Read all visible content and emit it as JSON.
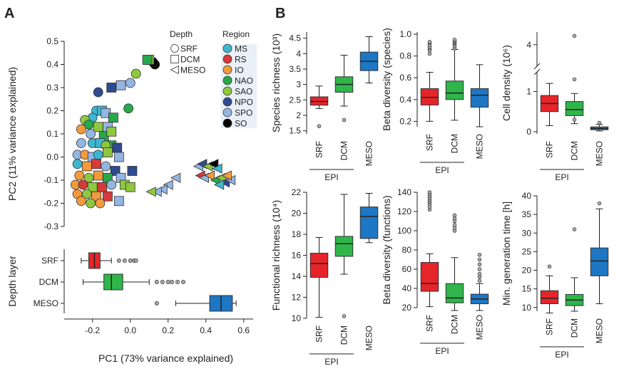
{
  "panels": {
    "a": "A",
    "b": "B"
  },
  "colors": {
    "MS": "#3fb6cf",
    "RS": "#d63a3a",
    "IO": "#f39a3c",
    "NAO": "#27a84a",
    "SAO": "#8fc73e",
    "NPO": "#2f4a8f",
    "SPO": "#93b6e2",
    "SO": "#000000",
    "SRF": "#e5252a",
    "DCM": "#2fb54a",
    "MESO": "#1d77c4"
  },
  "legend": {
    "depth_title": "Depth",
    "depth_items": [
      "SRF",
      "DCM",
      "MESO"
    ],
    "region_title": "Region",
    "region_items": [
      "MS",
      "RS",
      "IO",
      "NAO",
      "SAO",
      "NPO",
      "SPO",
      "SO"
    ]
  },
  "chart_data": [
    {
      "id": "pca",
      "type": "scatter",
      "xlabel": "PC1 (73% variance explained)",
      "ylabel": "PC2 (11% variance explained)",
      "xlim": [
        -0.35,
        0.65
      ],
      "ylim": [
        -0.3,
        0.5
      ],
      "xticks": [
        "-0.2",
        "0.0",
        "0.2",
        "0.4",
        "0.6"
      ],
      "yticks": [
        "0.5",
        "0.4",
        "0.3",
        "0.2",
        "0.1",
        "0.0",
        "-0.1",
        "-0.2",
        "-0.3"
      ],
      "points": [
        {
          "x": 0.13,
          "y": 0.4,
          "depth": "SRF",
          "region": "SO"
        },
        {
          "x": 0.12,
          "y": 0.41,
          "depth": "SRF",
          "region": "SO"
        },
        {
          "x": 0.1,
          "y": 0.42,
          "depth": "DCM",
          "region": "SAO"
        },
        {
          "x": 0.09,
          "y": 0.42,
          "depth": "DCM",
          "region": "NAO"
        },
        {
          "x": 0.03,
          "y": 0.36,
          "depth": "SRF",
          "region": "SAO"
        },
        {
          "x": 0.0,
          "y": 0.32,
          "depth": "SRF",
          "region": "SPO"
        },
        {
          "x": -0.05,
          "y": 0.31,
          "depth": "DCM",
          "region": "SPO"
        },
        {
          "x": -0.1,
          "y": 0.3,
          "depth": "DCM",
          "region": "NPO"
        },
        {
          "x": -0.17,
          "y": 0.28,
          "depth": "SRF",
          "region": "NPO"
        },
        {
          "x": -0.01,
          "y": 0.21,
          "depth": "SRF",
          "region": "NAO"
        },
        {
          "x": -0.18,
          "y": 0.2,
          "depth": "SRF",
          "region": "MS"
        },
        {
          "x": -0.15,
          "y": 0.2,
          "depth": "DCM",
          "region": "MS"
        },
        {
          "x": -0.13,
          "y": 0.19,
          "depth": "DCM",
          "region": "SPO"
        },
        {
          "x": -0.2,
          "y": 0.17,
          "depth": "SRF",
          "region": "MS"
        },
        {
          "x": -0.09,
          "y": 0.17,
          "depth": "DCM",
          "region": "NAO"
        },
        {
          "x": -0.24,
          "y": 0.16,
          "depth": "SRF",
          "region": "SAO"
        },
        {
          "x": -0.22,
          "y": 0.14,
          "depth": "SRF",
          "region": "NAO"
        },
        {
          "x": -0.17,
          "y": 0.13,
          "depth": "DCM",
          "region": "SAO"
        },
        {
          "x": -0.12,
          "y": 0.13,
          "depth": "DCM",
          "region": "SPO"
        },
        {
          "x": -0.26,
          "y": 0.12,
          "depth": "SRF",
          "region": "IO"
        },
        {
          "x": -0.21,
          "y": 0.1,
          "depth": "SRF",
          "region": "SPO"
        },
        {
          "x": -0.14,
          "y": 0.09,
          "depth": "DCM",
          "region": "NAO"
        },
        {
          "x": -0.1,
          "y": 0.11,
          "depth": "DCM",
          "region": "SAO"
        },
        {
          "x": -0.26,
          "y": 0.06,
          "depth": "SRF",
          "region": "SPO"
        },
        {
          "x": -0.2,
          "y": 0.06,
          "depth": "SRF",
          "region": "MS"
        },
        {
          "x": -0.16,
          "y": 0.06,
          "depth": "DCM",
          "region": "MS"
        },
        {
          "x": -0.1,
          "y": 0.05,
          "depth": "DCM",
          "region": "NAO"
        },
        {
          "x": -0.07,
          "y": 0.04,
          "depth": "DCM",
          "region": "NPO"
        },
        {
          "x": -0.13,
          "y": 0.05,
          "depth": "SRF",
          "region": "SAO"
        },
        {
          "x": -0.28,
          "y": 0.01,
          "depth": "SRF",
          "region": "SPO"
        },
        {
          "x": -0.24,
          "y": 0.01,
          "depth": "SRF",
          "region": "IO"
        },
        {
          "x": -0.2,
          "y": 0.0,
          "depth": "DCM",
          "region": "SPO"
        },
        {
          "x": -0.17,
          "y": 0.01,
          "depth": "SRF",
          "region": "MS"
        },
        {
          "x": -0.12,
          "y": 0.02,
          "depth": "DCM",
          "region": "SAO"
        },
        {
          "x": -0.06,
          "y": 0.0,
          "depth": "DCM",
          "region": "SPO"
        },
        {
          "x": -0.28,
          "y": -0.03,
          "depth": "SRF",
          "region": "MS"
        },
        {
          "x": -0.23,
          "y": -0.04,
          "depth": "DCM",
          "region": "IO"
        },
        {
          "x": -0.18,
          "y": -0.03,
          "depth": "DCM",
          "region": "RS"
        },
        {
          "x": -0.13,
          "y": -0.04,
          "depth": "SRF",
          "region": "SPO"
        },
        {
          "x": -0.08,
          "y": -0.06,
          "depth": "DCM",
          "region": "NPO"
        },
        {
          "x": 0.01,
          "y": -0.06,
          "depth": "DCM",
          "region": "NPO"
        },
        {
          "x": -0.27,
          "y": -0.08,
          "depth": "SRF",
          "region": "IO"
        },
        {
          "x": -0.22,
          "y": -0.09,
          "depth": "SRF",
          "region": "SAO"
        },
        {
          "x": -0.17,
          "y": -0.08,
          "depth": "DCM",
          "region": "IO"
        },
        {
          "x": -0.12,
          "y": -0.09,
          "depth": "DCM",
          "region": "NAO"
        },
        {
          "x": -0.05,
          "y": -0.09,
          "depth": "DCM",
          "region": "SPO"
        },
        {
          "x": -0.29,
          "y": -0.12,
          "depth": "SRF",
          "region": "IO"
        },
        {
          "x": -0.25,
          "y": -0.12,
          "depth": "SRF",
          "region": "RS"
        },
        {
          "x": -0.2,
          "y": -0.13,
          "depth": "DCM",
          "region": "SAO"
        },
        {
          "x": -0.15,
          "y": -0.13,
          "depth": "DCM",
          "region": "RS"
        },
        {
          "x": -0.1,
          "y": -0.12,
          "depth": "SRF",
          "region": "SPO"
        },
        {
          "x": -0.03,
          "y": -0.12,
          "depth": "DCM",
          "region": "SAO"
        },
        {
          "x": 0.0,
          "y": -0.13,
          "depth": "DCM",
          "region": "SAO"
        },
        {
          "x": -0.28,
          "y": -0.16,
          "depth": "SRF",
          "region": "IO"
        },
        {
          "x": -0.23,
          "y": -0.16,
          "depth": "SRF",
          "region": "SAO"
        },
        {
          "x": -0.18,
          "y": -0.17,
          "depth": "DCM",
          "region": "IO"
        },
        {
          "x": -0.12,
          "y": -0.17,
          "depth": "DCM",
          "region": "RS"
        },
        {
          "x": -0.06,
          "y": -0.19,
          "depth": "DCM",
          "region": "SPO"
        },
        {
          "x": -0.26,
          "y": -0.19,
          "depth": "SRF",
          "region": "IO"
        },
        {
          "x": -0.21,
          "y": -0.2,
          "depth": "SRF",
          "region": "SAO"
        },
        {
          "x": -0.16,
          "y": -0.2,
          "depth": "SRF",
          "region": "IO"
        },
        {
          "x": 0.36,
          "y": -0.04,
          "depth": "MESO",
          "region": "SPO"
        },
        {
          "x": 0.38,
          "y": -0.03,
          "depth": "MESO",
          "region": "NPO"
        },
        {
          "x": 0.41,
          "y": -0.04,
          "depth": "MESO",
          "region": "SAO"
        },
        {
          "x": 0.44,
          "y": -0.03,
          "depth": "MESO",
          "region": "SO"
        },
        {
          "x": 0.46,
          "y": -0.05,
          "depth": "MESO",
          "region": "MS"
        },
        {
          "x": 0.37,
          "y": -0.08,
          "depth": "MESO",
          "region": "RS"
        },
        {
          "x": 0.39,
          "y": -0.09,
          "depth": "MESO",
          "region": "SPO"
        },
        {
          "x": 0.42,
          "y": -0.08,
          "depth": "MESO",
          "region": "IO"
        },
        {
          "x": 0.45,
          "y": -0.1,
          "depth": "MESO",
          "region": "NAO"
        },
        {
          "x": 0.48,
          "y": -0.09,
          "depth": "MESO",
          "region": "SAO"
        },
        {
          "x": 0.5,
          "y": -0.11,
          "depth": "MESO",
          "region": "NPO"
        },
        {
          "x": 0.53,
          "y": -0.1,
          "depth": "MESO",
          "region": "SPO"
        },
        {
          "x": 0.47,
          "y": -0.12,
          "depth": "MESO",
          "region": "MS"
        },
        {
          "x": 0.51,
          "y": -0.08,
          "depth": "MESO",
          "region": "IO"
        },
        {
          "x": 0.24,
          "y": -0.09,
          "depth": "MESO",
          "region": "SPO"
        },
        {
          "x": 0.2,
          "y": -0.12,
          "depth": "MESO",
          "region": "SPO"
        },
        {
          "x": 0.17,
          "y": -0.14,
          "depth": "MESO",
          "region": "SPO"
        },
        {
          "x": 0.14,
          "y": -0.15,
          "depth": "MESO",
          "region": "SPO"
        },
        {
          "x": 0.11,
          "y": -0.15,
          "depth": "MESO",
          "region": "SAO"
        }
      ]
    },
    {
      "id": "pc1-depth",
      "type": "boxplot",
      "ylabel": "Depth layer",
      "categories": [
        "SRF",
        "DCM",
        "MESO"
      ],
      "boxes": [
        {
          "name": "SRF",
          "whisker_low": -0.26,
          "q1": -0.22,
          "median": -0.19,
          "q3": -0.16,
          "whisker_high": -0.1,
          "outliers": [
            -0.06,
            -0.03,
            0.0,
            0.02,
            0.03
          ]
        },
        {
          "name": "DCM",
          "whisker_low": -0.25,
          "q1": -0.14,
          "median": -0.1,
          "q3": -0.04,
          "whisker_high": 0.1,
          "outliers": [
            0.14,
            0.17,
            0.2,
            0.22,
            0.25,
            0.28
          ]
        },
        {
          "name": "MESO",
          "whisker_low": 0.24,
          "q1": 0.42,
          "median": 0.48,
          "q3": 0.54,
          "whisker_high": 0.56,
          "outliers": [
            0.14
          ]
        }
      ]
    },
    {
      "id": "species-richness",
      "type": "boxplot",
      "ylabel": "Species richness (10³)",
      "ylim": [
        1.4,
        4.7
      ],
      "yticks": [
        "1.5",
        "2",
        "2.5",
        "3",
        "3.5",
        "4",
        "4.5"
      ],
      "categories": [
        "SRF",
        "DCM",
        "MESO"
      ],
      "group_label": "EPI",
      "boxes": [
        {
          "name": "SRF",
          "whisker_low": 2.22,
          "q1": 2.33,
          "median": 2.45,
          "q3": 2.6,
          "whisker_high": 2.95,
          "outliers": [
            1.65
          ]
        },
        {
          "name": "DCM",
          "whisker_low": 2.3,
          "q1": 2.75,
          "median": 3.0,
          "q3": 3.25,
          "whisker_high": 3.95,
          "outliers": [
            1.85
          ]
        },
        {
          "name": "MESO",
          "whisker_low": 3.05,
          "q1": 3.45,
          "median": 3.75,
          "q3": 4.05,
          "whisker_high": 4.55,
          "outliers": []
        }
      ]
    },
    {
      "id": "beta-species",
      "type": "boxplot",
      "ylabel": "Beta diversity (species)",
      "ylim": [
        0.15,
        1.02
      ],
      "yticks": [
        "0.2",
        "0.4",
        "0.6",
        "0.8",
        "1.0"
      ],
      "categories": [
        "SRF",
        "DCM",
        "MESO"
      ],
      "group_label": "EPI",
      "boxes": [
        {
          "name": "SRF",
          "whisker_low": 0.2,
          "q1": 0.35,
          "median": 0.42,
          "q3": 0.5,
          "whisker_high": 0.65,
          "outliers": [
            0.82,
            0.85,
            0.87,
            0.88,
            0.9,
            0.92,
            0.93
          ]
        },
        {
          "name": "DCM",
          "whisker_low": 0.21,
          "q1": 0.4,
          "median": 0.46,
          "q3": 0.57,
          "whisker_high": 0.86,
          "outliers": [
            0.87,
            0.89,
            0.91,
            0.92,
            0.93,
            0.94,
            0.95
          ]
        },
        {
          "name": "MESO",
          "whisker_low": 0.15,
          "q1": 0.33,
          "median": 0.44,
          "q3": 0.5,
          "whisker_high": 0.72,
          "outliers": []
        }
      ]
    },
    {
      "id": "cell-density",
      "type": "boxplot",
      "ylabel": "Cell density (10⁶)",
      "axis_break": true,
      "yticks": [
        "0",
        "1",
        "4"
      ],
      "categories": [
        "SRF",
        "DCM",
        "MESO"
      ],
      "group_label": "EPI",
      "boxes": [
        {
          "name": "SRF",
          "whisker_low": 0.15,
          "q1": 0.5,
          "median": 0.7,
          "q3": 0.9,
          "whisker_high": 1.2,
          "outliers": []
        },
        {
          "name": "DCM",
          "whisker_low": 0.2,
          "q1": 0.4,
          "median": 0.55,
          "q3": 0.75,
          "whisker_high": 0.95,
          "outliers": [
            0.3,
            1.3,
            4.7
          ]
        },
        {
          "name": "MESO",
          "whisker_low": 0.02,
          "q1": 0.05,
          "median": 0.08,
          "q3": 0.12,
          "whisker_high": 0.18,
          "outliers": [
            0.22
          ]
        }
      ]
    },
    {
      "id": "functional-richness",
      "type": "boxplot",
      "ylabel": "Functional richness (10⁴)",
      "ylim": [
        10,
        22
      ],
      "yticks": [
        "10",
        "12",
        "14",
        "16",
        "18",
        "20",
        "22"
      ],
      "categories": [
        "SRF",
        "DCM",
        "MESO"
      ],
      "group_label": "EPI",
      "boxes": [
        {
          "name": "SRF",
          "whisker_low": 10.1,
          "q1": 13.9,
          "median": 15.2,
          "q3": 16.2,
          "whisker_high": 17.7,
          "outliers": []
        },
        {
          "name": "DCM",
          "whisker_low": 14.2,
          "q1": 15.9,
          "median": 17.1,
          "q3": 17.8,
          "whisker_high": 21.8,
          "outliers": [
            10.2
          ]
        },
        {
          "name": "MESO",
          "whisker_low": 17.2,
          "q1": 17.6,
          "median": 19.7,
          "q3": 20.6,
          "whisker_high": 21.9,
          "outliers": []
        }
      ]
    },
    {
      "id": "beta-functions",
      "type": "boxplot",
      "ylabel": "Beta diversity (functions)",
      "ylim": [
        20,
        140
      ],
      "yticks": [
        "20",
        "40",
        "60",
        "80",
        "100",
        "120",
        "140"
      ],
      "categories": [
        "SRF",
        "DCM",
        "MESO"
      ],
      "group_label": "EPI",
      "boxes": [
        {
          "name": "SRF",
          "whisker_low": 21,
          "q1": 37,
          "median": 45,
          "q3": 67,
          "whisker_high": 76,
          "outliers": [
            122,
            125,
            128,
            130,
            132,
            134,
            136,
            138,
            140
          ]
        },
        {
          "name": "DCM",
          "whisker_low": 17,
          "q1": 25,
          "median": 30,
          "q3": 45,
          "whisker_high": 72,
          "outliers": [
            100,
            103,
            106,
            110,
            113,
            116
          ]
        },
        {
          "name": "MESO",
          "whisker_low": 17,
          "q1": 24,
          "median": 29,
          "q3": 34,
          "whisker_high": 45,
          "outliers": [
            48,
            52,
            55,
            60,
            65,
            70,
            75
          ]
        }
      ]
    },
    {
      "id": "generation-time",
      "type": "boxplot",
      "ylabel": "Min. generation time [h]",
      "ylim": [
        9,
        40
      ],
      "yticks": [
        "10",
        "15",
        "20",
        "25",
        "30",
        "35",
        "40"
      ],
      "categories": [
        "SRF",
        "DCM",
        "MESO"
      ],
      "group_label": "EPI",
      "boxes": [
        {
          "name": "SRF",
          "whisker_low": 8.5,
          "q1": 11,
          "median": 12.5,
          "q3": 14.5,
          "whisker_high": 18.5,
          "outliers": [
            21
          ]
        },
        {
          "name": "DCM",
          "whisker_low": 9,
          "q1": 10.5,
          "median": 12,
          "q3": 13.5,
          "whisker_high": 18,
          "outliers": [
            31
          ]
        },
        {
          "name": "MESO",
          "whisker_low": 11,
          "q1": 18.5,
          "median": 22.5,
          "q3": 26,
          "whisker_high": 36.5,
          "outliers": [
            38
          ]
        }
      ]
    }
  ]
}
